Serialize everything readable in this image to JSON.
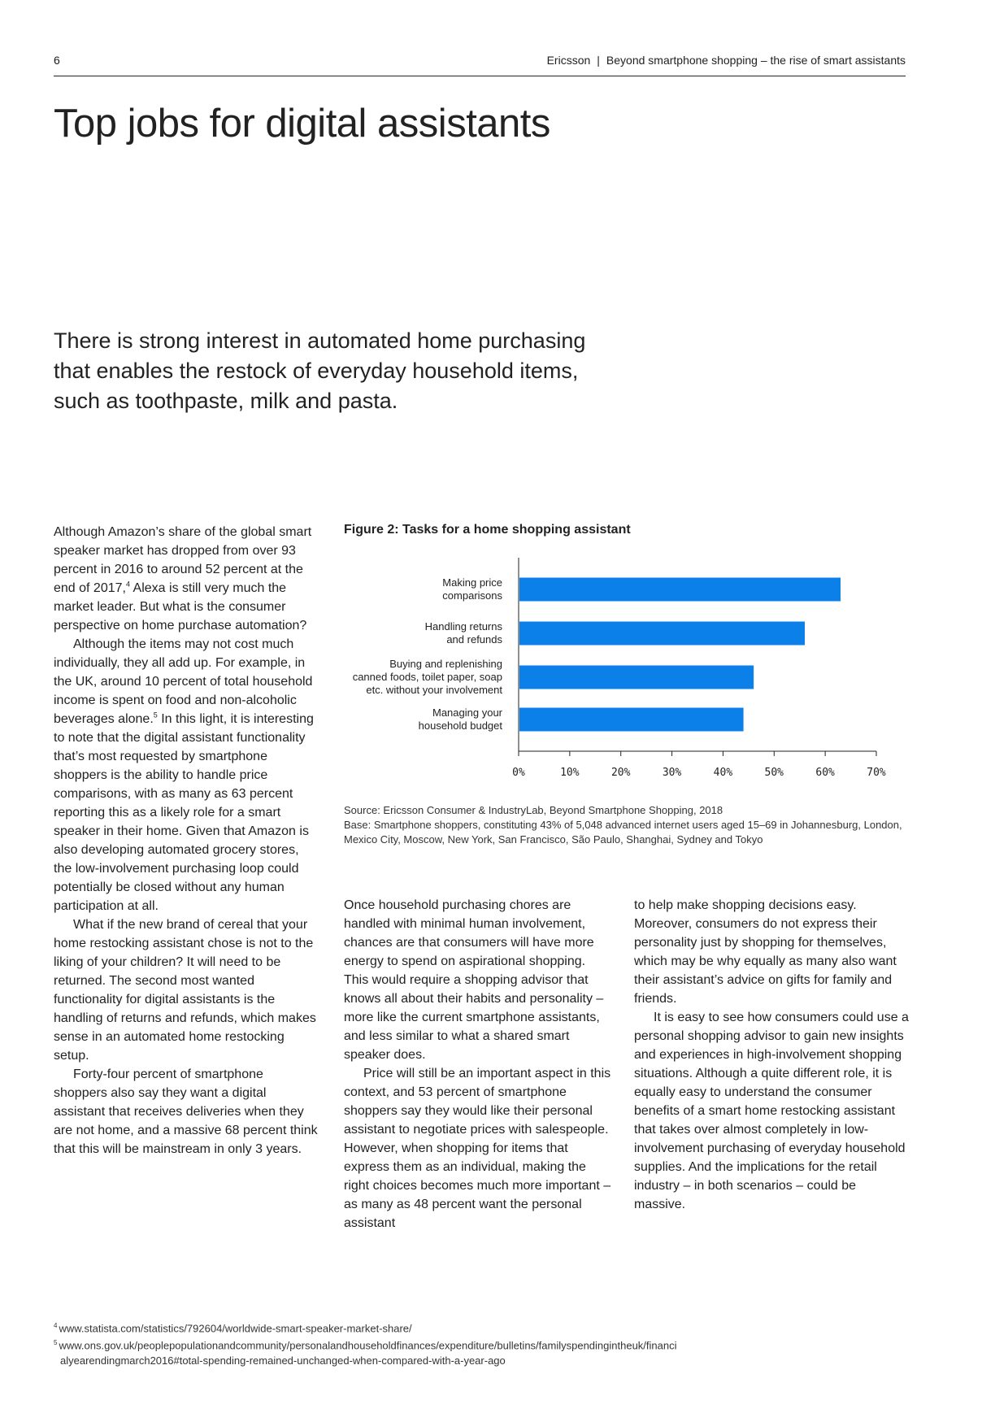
{
  "header": {
    "page_number": "6",
    "publisher": "Ericsson",
    "separator": "|",
    "report_title": "Beyond smartphone shopping – the rise of smart assistants"
  },
  "title": "Top jobs for digital assistants",
  "lead": "There is strong interest in automated home purchasing that enables the restock of everyday household items, such as toothpaste, milk and pasta.",
  "column1": {
    "p1_a": "Although Amazon’s share of the global smart speaker market has dropped from over 93 percent in 2016 to around 52 percent at the end of 2017,",
    "p1_sup": "4",
    "p1_b": " Alexa is still very much the market leader. But what is the consumer perspective on home purchase automation?",
    "p2_a": "Although the items may not cost much individually, they all add up. For example, in the UK, around 10 percent of total household income is spent on food and non-alcoholic beverages alone.",
    "p2_sup": "5",
    "p2_b": " In this light, it is interesting to note that the digital assistant functionality that’s most requested by smartphone shoppers is the ability to handle price comparisons, with as many as 63 percent reporting this as a likely role for a smart speaker in their home. Given that Amazon is also developing automated grocery stores, the low-involvement purchasing loop could potentially be closed without any human participation at all.",
    "p3": "What if the new brand of cereal that your home restocking assistant chose is not to the liking of your children? It will need to be returned. The second most wanted functionality for digital assistants is the handling of returns and refunds, which makes sense in an automated home restocking setup.",
    "p4": "Forty-four percent of smartphone shoppers also say they want a digital assistant that receives deliveries when they are not home, and a massive 68 percent think that this will be mainstream in only 3 years."
  },
  "column2": {
    "p1": "Once household purchasing chores are handled with minimal human involvement, chances are that consumers will have more energy to spend on aspirational shopping. This would require a shopping advisor that knows all about their habits and personality – more like the current smartphone assistants, and less similar to what a shared smart speaker does.",
    "p2": "Price will still be an important aspect in this context, and 53 percent of smartphone shoppers say they would like their personal assistant to negotiate prices with salespeople. However, when shopping for items that express them as an individual, making the right choices becomes much more important – as many as 48 percent want the personal assistant"
  },
  "column3": {
    "p1": "to help make shopping decisions easy. Moreover, consumers do not express their personality just by shopping for themselves, which may be why equally as many also want their assistant’s advice on gifts for family and friends.",
    "p2": "It is easy to see how consumers could use a personal shopping advisor to gain new insights and experiences in high-involvement shopping situations. Although a quite different role, it is equally easy to understand the consumer benefits of a smart home restocking assistant that takes over almost completely in low-involvement purchasing of everyday household supplies. And the implications for the retail industry – in both scenarios – could be massive."
  },
  "figure": {
    "title": "Figure 2: Tasks for a home shopping assistant",
    "source_line": "Source: Ericsson Consumer & IndustryLab, Beyond Smartphone Shopping, 2018",
    "base_line": "Base: Smartphone shoppers, constituting 43% of 5,048 advanced internet users aged 15–69 in Johannesburg, London, Mexico City, Moscow, New York, San Francisco, São Paulo, Shanghai, Sydney and Tokyo"
  },
  "chart_data": {
    "type": "bar",
    "orientation": "horizontal",
    "categories": [
      [
        "Making price",
        "comparisons"
      ],
      [
        "Handling returns",
        "and refunds"
      ],
      [
        "Buying and replenishing",
        "canned foods, toilet paper, soap",
        "etc. without your involvement"
      ],
      [
        "Managing your",
        "household budget"
      ]
    ],
    "values": [
      63,
      56,
      46,
      44
    ],
    "xlim": [
      0,
      70
    ],
    "x_ticks": [
      "0%",
      "10%",
      "20%",
      "30%",
      "40%",
      "50%",
      "60%",
      "70%"
    ],
    "bar_color": "#0a80e8",
    "axis_color": "#222222",
    "grid": false,
    "legend": "none"
  },
  "footnotes": [
    {
      "num": "4",
      "lines": [
        "www.statista.com/statistics/792604/worldwide-smart-speaker-market-share/"
      ]
    },
    {
      "num": "5",
      "lines": [
        "www.ons.gov.uk/peoplepopulationandcommunity/personalandhouseholdfinances/expenditure/bulletins/familyspendingintheuk/financi",
        "alyearendingmarch2016#total-spending-remained-unchanged-when-compared-with-a-year-ago"
      ]
    }
  ]
}
